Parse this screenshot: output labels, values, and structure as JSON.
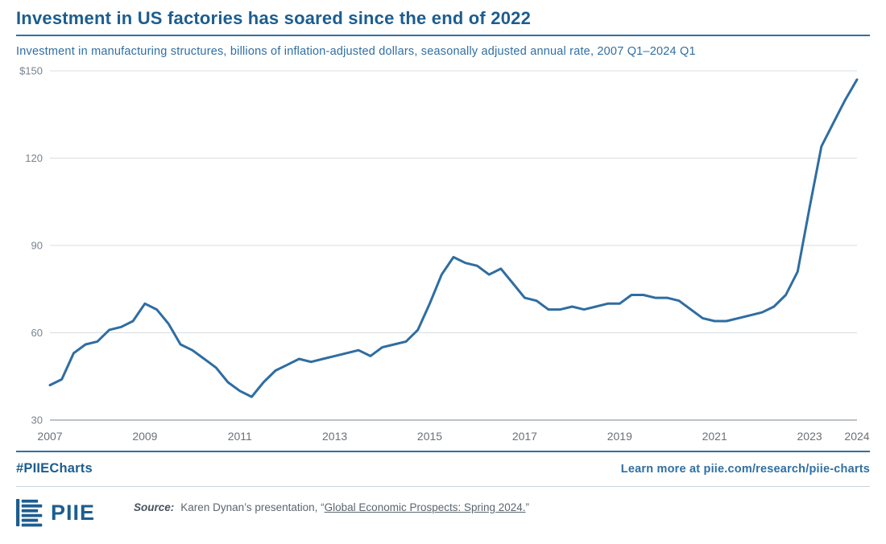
{
  "header": {
    "title": "Investment in US factories has soared since the end of 2022",
    "subtitle": "Investment in manufacturing structures, billions of inflation-adjusted dollars, seasonally adjusted annual rate, 2007 Q1–2024 Q1"
  },
  "footer": {
    "hashtag": "#PIIECharts",
    "learn_more": "Learn more at piie.com/research/piie-charts",
    "logo_text": "PIIE",
    "source_label": "Source:",
    "source_prefix": "Karen Dynan’s presentation, “",
    "source_link": "Global Economic Prospects: Spring 2024.",
    "source_suffix": "”"
  },
  "colors": {
    "brand_blue": "#1d5d8f",
    "rule_blue": "#2f6fa3",
    "line_blue": "#2f6da1",
    "grid_gray": "#d9dde0",
    "axis_line": "#7b8591",
    "axis_gray": "#79838e"
  },
  "chart_data": {
    "type": "line",
    "title": "Investment in US factories has soared since the end of 2022",
    "series_name": "Investment in manufacturing structures (billions of inflation-adjusted dollars, SAAR)",
    "frequency": "quarterly",
    "x_start_year": 2007,
    "x_end_label": "2024 Q1",
    "values": [
      42,
      44,
      53,
      56,
      57,
      61,
      62,
      64,
      70,
      68,
      63,
      56,
      54,
      51,
      48,
      43,
      40,
      38,
      43,
      47,
      49,
      51,
      50,
      51,
      52,
      53,
      54,
      52,
      55,
      56,
      57,
      61,
      70,
      80,
      86,
      84,
      83,
      80,
      82,
      77,
      72,
      71,
      68,
      68,
      69,
      68,
      69,
      70,
      70,
      73,
      73,
      72,
      72,
      71,
      68,
      65,
      64,
      64,
      65,
      66,
      67,
      69,
      73,
      81,
      103,
      124,
      132,
      140,
      147
    ],
    "ylim": [
      30,
      150
    ],
    "yticks": [
      30,
      60,
      90,
      120,
      150
    ],
    "ytick_labels": [
      "30",
      "60",
      "90",
      "120",
      "$150"
    ],
    "xticks": [
      2007,
      2009,
      2011,
      2013,
      2015,
      2017,
      2019,
      2021,
      2023,
      2024
    ],
    "grid": true,
    "legend": false,
    "xlabel": "",
    "ylabel": ""
  }
}
